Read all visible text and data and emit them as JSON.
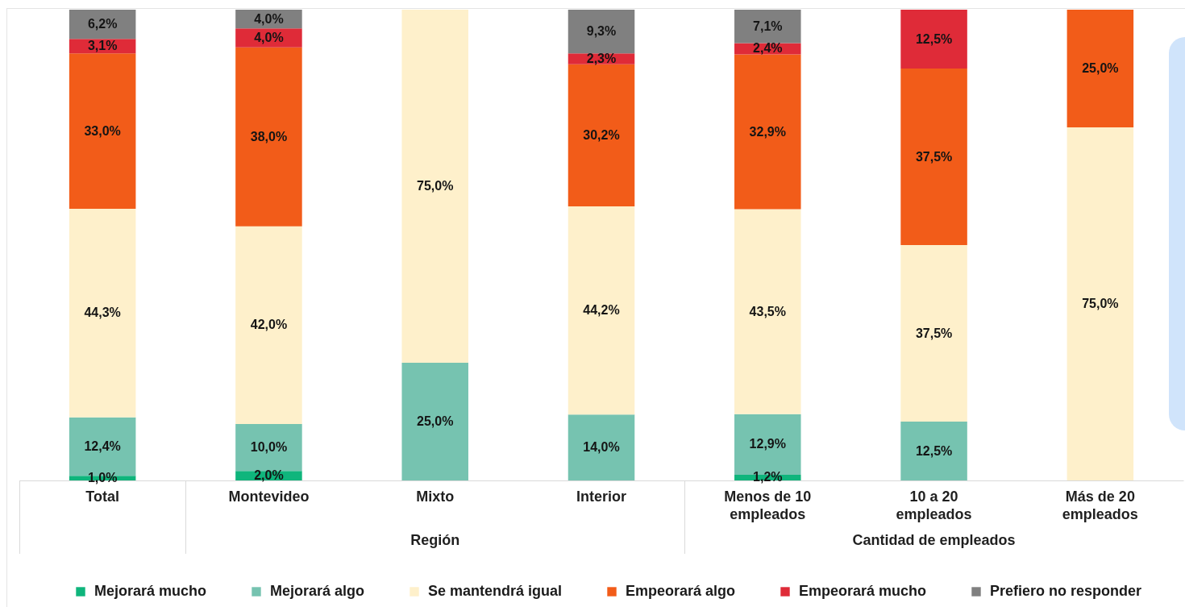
{
  "chart_data": {
    "type": "bar",
    "stacked": true,
    "categories": [
      "Total",
      "Montevideo",
      "Mixto",
      "Interior",
      "Menos de 10 empleados",
      "10 a 20 empleados",
      "Más de 20 empleados"
    ],
    "ylim": [
      0,
      100
    ],
    "tick_labels": "x",
    "legend": "bottom",
    "annotations": [
      "Región",
      "Cantidad de empleados"
    ],
    "series": [
      {
        "name": "Mejorará mucho",
        "color": "#0fb57c",
        "values": [
          1.0,
          2.0,
          null,
          null,
          1.2,
          null,
          null
        ],
        "value_labels": [
          "1,0%",
          "2,0%",
          null,
          null,
          "1,2%",
          null,
          null
        ]
      },
      {
        "name": "Mejorará algo",
        "color": "#76c3b0",
        "values": [
          12.4,
          10.0,
          25.0,
          14.0,
          12.9,
          12.5,
          null
        ],
        "value_labels": [
          "12,4%",
          "10,0%",
          "25,0%",
          "14,0%",
          "12,9%",
          "12,5%",
          null
        ]
      },
      {
        "name": "Se mantendrá igual",
        "color": "#fef0cb",
        "values": [
          44.3,
          42.0,
          75.0,
          44.2,
          43.5,
          37.5,
          75.0
        ],
        "value_labels": [
          "44,3%",
          "42,0%",
          "75,0%",
          "44,2%",
          "43,5%",
          "37,5%",
          "75,0%"
        ]
      },
      {
        "name": "Empeorará algo",
        "color": "#f25c19",
        "values": [
          33.0,
          38.0,
          null,
          30.2,
          32.9,
          37.5,
          25.0
        ],
        "value_labels": [
          "33,0%",
          "38,0%",
          null,
          "30,2%",
          "32,9%",
          "37,5%",
          "25,0%"
        ]
      },
      {
        "name": "Empeorará mucho",
        "color": "#df2b38",
        "values": [
          3.1,
          4.0,
          null,
          2.3,
          2.4,
          12.5,
          null
        ],
        "value_labels": [
          "3,1%",
          "4,0%",
          null,
          "2,3%",
          "2,4%",
          "12,5%",
          null
        ]
      },
      {
        "name": "Prefiero no responder",
        "color": "#808080",
        "values": [
          6.2,
          4.0,
          null,
          9.3,
          7.1,
          null,
          null
        ],
        "value_labels": [
          "6,2%",
          "4,0%",
          null,
          "9,3%",
          "7,1%",
          null,
          null
        ]
      }
    ]
  }
}
